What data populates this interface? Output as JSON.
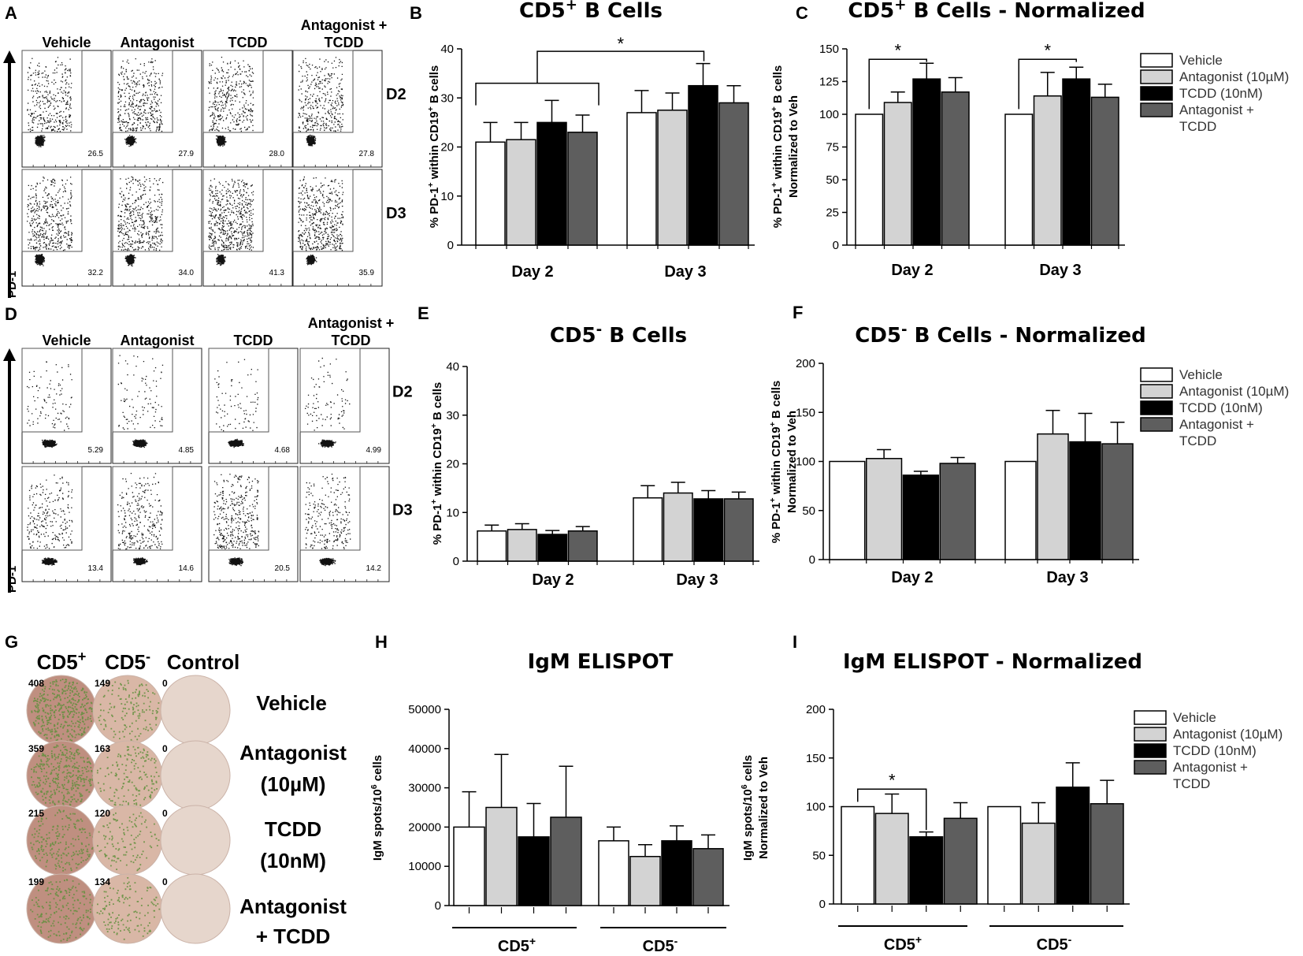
{
  "panels": {
    "A": {
      "letter": "A",
      "col_headers": [
        "Vehicle",
        "Antagonist",
        "TCDD",
        "Antagonist + TCDD"
      ],
      "row_labels": [
        "D2",
        "D3"
      ],
      "y_axis_label": "PD-1",
      "percentages": [
        [
          "26.5",
          "27.9",
          "28.0",
          "27.8"
        ],
        [
          "32.2",
          "34.0",
          "41.3",
          "35.9"
        ]
      ]
    },
    "D": {
      "letter": "D",
      "col_headers": [
        "Vehicle",
        "Antagonist",
        "TCDD",
        "Antagonist + TCDD"
      ],
      "row_labels": [
        "D2",
        "D3"
      ],
      "y_axis_label": "PD-1",
      "percentages": [
        [
          "5.29",
          "4.85",
          "4.68",
          "4.99"
        ],
        [
          "13.4",
          "14.6",
          "20.5",
          "14.2"
        ]
      ]
    },
    "G": {
      "letter": "G",
      "col_headers": [
        "CD5+",
        "CD5-",
        "Control"
      ],
      "row_labels": [
        "Vehicle",
        "Antagonist (10µM)",
        "TCDD (10nM)",
        "Antagonist + TCDD"
      ],
      "counts": [
        [
          "408",
          "149",
          "0"
        ],
        [
          "359",
          "163",
          "0"
        ],
        [
          "215",
          "120",
          "0"
        ],
        [
          "199",
          "134",
          "0"
        ]
      ]
    }
  },
  "legend": {
    "entries": [
      "Vehicle",
      "Antagonist (10µM)",
      "TCDD (10nM)",
      "Antagonist + TCDD"
    ],
    "colors": [
      "#ffffff",
      "#d3d3d3",
      "#000000",
      "#5e5e5e"
    ]
  },
  "chart_data": [
    {
      "id": "B",
      "letter": "B",
      "type": "bar",
      "title": "CD5+ B Cells",
      "ylabel": "% PD-1+ within CD19+ B cells",
      "categories": [
        "Day 2",
        "Day 3"
      ],
      "ylim": [
        0,
        40
      ],
      "yticks": [
        0,
        10,
        20,
        30,
        40
      ],
      "series": [
        {
          "name": "Vehicle",
          "values": [
            21,
            27
          ],
          "errors": [
            4,
            4.5
          ]
        },
        {
          "name": "Antagonist (10µM)",
          "values": [
            21.5,
            27.5
          ],
          "errors": [
            3.5,
            3.5
          ]
        },
        {
          "name": "TCDD (10nM)",
          "values": [
            25,
            32.5
          ],
          "errors": [
            4.5,
            4.5
          ]
        },
        {
          "name": "Antagonist + TCDD",
          "values": [
            23,
            29
          ],
          "errors": [
            3.5,
            3.5
          ]
        }
      ],
      "significance": [
        {
          "label": "*",
          "from": "Day 2 (all)",
          "to": "Day 3 TCDD"
        }
      ]
    },
    {
      "id": "C",
      "letter": "C",
      "type": "bar",
      "title": "CD5+ B Cells - Normalized",
      "ylabel": "% PD-1+ within CD19+ B cells Normalized to Veh",
      "categories": [
        "Day 2",
        "Day 3"
      ],
      "ylim": [
        0,
        150
      ],
      "yticks": [
        0,
        25,
        50,
        75,
        100,
        125,
        150
      ],
      "series": [
        {
          "name": "Vehicle",
          "values": [
            100,
            100
          ],
          "errors": [
            0,
            0
          ]
        },
        {
          "name": "Antagonist (10µM)",
          "values": [
            109,
            114
          ],
          "errors": [
            8,
            18
          ]
        },
        {
          "name": "TCDD (10nM)",
          "values": [
            127,
            127
          ],
          "errors": [
            12,
            9
          ]
        },
        {
          "name": "Antagonist + TCDD",
          "values": [
            117,
            113
          ],
          "errors": [
            11,
            10
          ]
        }
      ],
      "significance": [
        {
          "label": "*",
          "from": "Day 2 Vehicle",
          "to": "Day 2 TCDD"
        },
        {
          "label": "*",
          "from": "Day 3 Vehicle",
          "to": "Day 3 TCDD"
        }
      ]
    },
    {
      "id": "E",
      "letter": "E",
      "type": "bar",
      "title": "CD5- B Cells",
      "ylabel": "% PD-1+ within CD19+ B cells",
      "categories": [
        "Day 2",
        "Day 3"
      ],
      "ylim": [
        0,
        40
      ],
      "yticks": [
        0,
        10,
        20,
        30,
        40
      ],
      "series": [
        {
          "name": "Vehicle",
          "values": [
            6.2,
            13
          ],
          "errors": [
            1.2,
            2.5
          ]
        },
        {
          "name": "Antagonist (10µM)",
          "values": [
            6.5,
            14
          ],
          "errors": [
            1.2,
            2.2
          ]
        },
        {
          "name": "TCDD (10nM)",
          "values": [
            5.5,
            12.8
          ],
          "errors": [
            0.8,
            1.7
          ]
        },
        {
          "name": "Antagonist + TCDD",
          "values": [
            6.2,
            12.8
          ],
          "errors": [
            0.9,
            1.4
          ]
        }
      ],
      "significance": []
    },
    {
      "id": "F",
      "letter": "F",
      "type": "bar",
      "title": "CD5- B Cells - Normalized",
      "ylabel": "% PD-1+ within CD19+ B cells Normalized to Veh",
      "categories": [
        "Day 2",
        "Day 3"
      ],
      "ylim": [
        0,
        200
      ],
      "yticks": [
        0,
        50,
        100,
        150,
        200
      ],
      "series": [
        {
          "name": "Vehicle",
          "values": [
            100,
            100
          ],
          "errors": [
            0,
            0
          ]
        },
        {
          "name": "Antagonist (10µM)",
          "values": [
            103,
            128
          ],
          "errors": [
            9,
            24
          ]
        },
        {
          "name": "TCDD (10nM)",
          "values": [
            86,
            120
          ],
          "errors": [
            4,
            29
          ]
        },
        {
          "name": "Antagonist + TCDD",
          "values": [
            98,
            118
          ],
          "errors": [
            6,
            22
          ]
        }
      ],
      "significance": []
    },
    {
      "id": "H",
      "letter": "H",
      "type": "bar",
      "title": "IgM ELISPOT",
      "ylabel": "IgM spots/10^6 cells",
      "categories": [
        "CD5+",
        "CD5-"
      ],
      "ylim": [
        0,
        50000
      ],
      "yticks": [
        0,
        10000,
        20000,
        30000,
        40000,
        50000
      ],
      "series": [
        {
          "name": "Vehicle",
          "values": [
            20000,
            16500
          ],
          "errors": [
            9000,
            3500
          ]
        },
        {
          "name": "Antagonist (10µM)",
          "values": [
            25000,
            12500
          ],
          "errors": [
            13500,
            3000
          ]
        },
        {
          "name": "TCDD (10nM)",
          "values": [
            17500,
            16500
          ],
          "errors": [
            8500,
            3800
          ]
        },
        {
          "name": "Antagonist + TCDD",
          "values": [
            22500,
            14500
          ],
          "errors": [
            13000,
            3500
          ]
        }
      ],
      "significance": []
    },
    {
      "id": "I",
      "letter": "I",
      "type": "bar",
      "title": "IgM ELISPOT - Normalized",
      "ylabel": "IgM spots/10^6 cells Normalized to Veh",
      "categories": [
        "CD5+",
        "CD5-"
      ],
      "ylim": [
        0,
        200
      ],
      "yticks": [
        0,
        50,
        100,
        150,
        200
      ],
      "series": [
        {
          "name": "Vehicle",
          "values": [
            100,
            100
          ],
          "errors": [
            0,
            0
          ]
        },
        {
          "name": "Antagonist (10µM)",
          "values": [
            93,
            83
          ],
          "errors": [
            20,
            21
          ]
        },
        {
          "name": "TCDD (10nM)",
          "values": [
            69,
            120
          ],
          "errors": [
            5,
            25
          ]
        },
        {
          "name": "Antagonist + TCDD",
          "values": [
            88,
            103
          ],
          "errors": [
            16,
            24
          ]
        }
      ],
      "significance": [
        {
          "label": "*",
          "from": "CD5+ Vehicle",
          "to": "CD5+ TCDD"
        }
      ]
    }
  ]
}
